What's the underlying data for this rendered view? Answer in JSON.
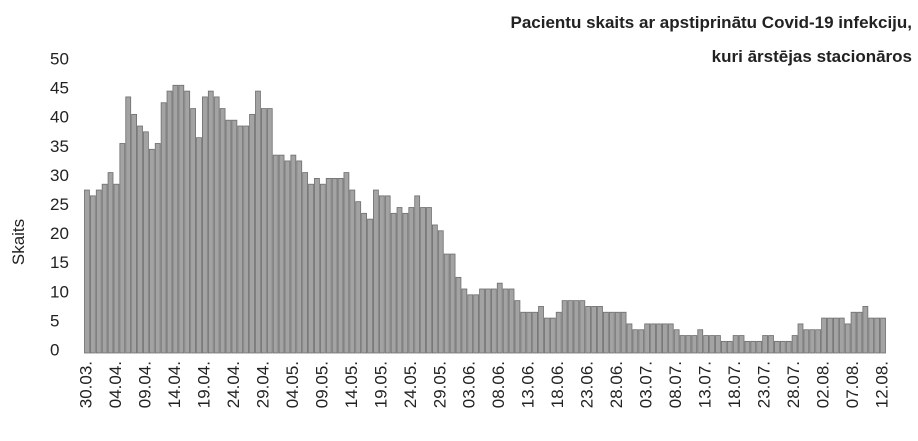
{
  "chart_data": {
    "type": "bar",
    "title": [
      "Pacientu skaits ar apstiprinātu Covid-19 infekciju,",
      "kuri ārstējas stacionāros"
    ],
    "y_label": "Skaits",
    "color": "#a3a3a3",
    "ylim": [
      0,
      50
    ],
    "yticks": [
      0,
      5,
      10,
      15,
      20,
      25,
      30,
      35,
      40,
      45,
      50
    ],
    "categories": [
      "30.03.",
      null,
      null,
      null,
      null,
      "04.04.",
      null,
      null,
      null,
      null,
      "09.04.",
      null,
      null,
      null,
      null,
      "14.04.",
      null,
      null,
      null,
      null,
      "19.04.",
      null,
      null,
      null,
      null,
      "24.04.",
      null,
      null,
      null,
      null,
      "29.04.",
      null,
      null,
      null,
      null,
      "04.05.",
      null,
      null,
      null,
      null,
      "09.05.",
      null,
      null,
      null,
      null,
      "14.05.",
      null,
      null,
      null,
      null,
      "19.05.",
      null,
      null,
      null,
      null,
      "24.05.",
      null,
      null,
      null,
      null,
      "29.05.",
      null,
      null,
      null,
      null,
      "03.06.",
      null,
      null,
      null,
      null,
      "08.06.",
      null,
      null,
      null,
      null,
      "13.06.",
      null,
      null,
      null,
      null,
      "18.06.",
      null,
      null,
      null,
      null,
      "23.06.",
      null,
      null,
      null,
      null,
      "28.06.",
      null,
      null,
      null,
      null,
      "03.07.",
      null,
      null,
      null,
      null,
      "08.07.",
      null,
      null,
      null,
      null,
      "13.07.",
      null,
      null,
      null,
      null,
      "18.07.",
      null,
      null,
      null,
      null,
      "23.07.",
      null,
      null,
      null,
      null,
      "28.07.",
      null,
      null,
      null,
      null,
      "02.08.",
      null,
      null,
      null,
      null,
      "07.08.",
      null,
      null,
      null,
      null,
      "12.08."
    ],
    "values": [
      28,
      27,
      28,
      29,
      31,
      29,
      36,
      44,
      41,
      39,
      38,
      35,
      36,
      43,
      45,
      46,
      46,
      45,
      42,
      37,
      44,
      45,
      44,
      42,
      40,
      40,
      39,
      39,
      41,
      45,
      42,
      42,
      34,
      34,
      33,
      34,
      33,
      31,
      29,
      30,
      29,
      30,
      30,
      30,
      31,
      28,
      26,
      24,
      23,
      28,
      27,
      27,
      24,
      25,
      24,
      25,
      27,
      25,
      25,
      22,
      21,
      17,
      17,
      13,
      11,
      10,
      10,
      11,
      11,
      11,
      12,
      11,
      11,
      9,
      7,
      7,
      7,
      8,
      6,
      6,
      7,
      9,
      9,
      9,
      9,
      8,
      8,
      8,
      7,
      7,
      7,
      7,
      5,
      4,
      4,
      5,
      5,
      5,
      5,
      5,
      4,
      3,
      3,
      3,
      4,
      3,
      3,
      3,
      2,
      2,
      3,
      3,
      2,
      2,
      2,
      3,
      3,
      2,
      2,
      2,
      3,
      5,
      4,
      4,
      4,
      6,
      6,
      6,
      6,
      5,
      7,
      7,
      8,
      6,
      6,
      6
    ]
  }
}
